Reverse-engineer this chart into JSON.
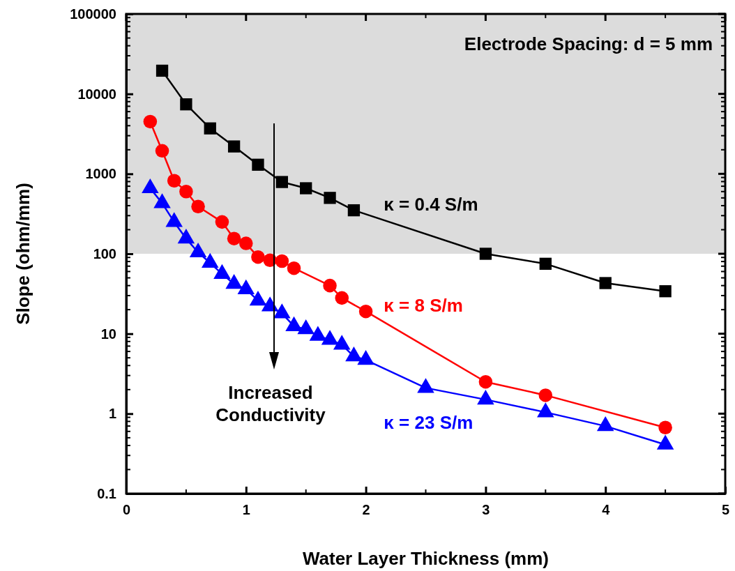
{
  "chart_data": {
    "type": "line",
    "xlabel": "Water Layer Thickness (mm)",
    "ylabel": "Slope (ohm/mm)",
    "log": "y",
    "xlim": [
      0,
      5
    ],
    "xticks": [
      0,
      1,
      2,
      3,
      4,
      5
    ],
    "ylim": [
      0.1,
      100000
    ],
    "yticks": [
      0.1,
      1,
      10,
      100,
      1000,
      10000,
      100000
    ],
    "grid": false,
    "line_style": "solid",
    "bands": [
      {
        "axis": "y",
        "from": 100,
        "to": 100000,
        "color": "#dcdcdc"
      }
    ],
    "annotations": [
      "Electrode Spacing: d = 5 mm",
      "Increased Conductivity"
    ],
    "series": [
      {
        "name": "κ = 0.4 S/m",
        "color": "#000000",
        "marker": "square",
        "x": [
          0.3,
          0.5,
          0.7,
          0.9,
          1.1,
          1.3,
          1.5,
          1.7,
          1.9,
          3,
          3.5,
          4,
          4.5
        ],
        "values": [
          19500,
          7400,
          3700,
          2200,
          1300,
          790,
          660,
          500,
          350,
          100,
          75,
          43,
          34
        ]
      },
      {
        "name": "κ = 8 S/m",
        "color": "#ff0000",
        "marker": "circle",
        "x": [
          0.2,
          0.3,
          0.4,
          0.5,
          0.6,
          0.8,
          0.9,
          1.0,
          1.1,
          1.2,
          1.3,
          1.4,
          1.7,
          1.8,
          2.0,
          3,
          3.5,
          4.5
        ],
        "values": [
          4500,
          1940,
          820,
          600,
          390,
          250,
          155,
          135,
          91,
          83,
          81,
          66,
          40,
          28,
          19,
          2.5,
          1.7,
          0.67
        ]
      },
      {
        "name": "κ = 23 S/m",
        "color": "#0000ff",
        "marker": "triangle",
        "x": [
          0.2,
          0.3,
          0.4,
          0.5,
          0.6,
          0.7,
          0.8,
          0.9,
          1.0,
          1.1,
          1.2,
          1.3,
          1.4,
          1.5,
          1.6,
          1.7,
          1.8,
          1.9,
          2.0,
          2.5,
          3,
          3.5,
          4,
          4.5
        ],
        "values": [
          660,
          430,
          250,
          155,
          104,
          77,
          56,
          42,
          36,
          26,
          22,
          18,
          12.4,
          11.4,
          9.4,
          8.4,
          7.3,
          5.2,
          4.7,
          2.1,
          1.5,
          1.04,
          0.7,
          0.41
        ]
      }
    ]
  }
}
